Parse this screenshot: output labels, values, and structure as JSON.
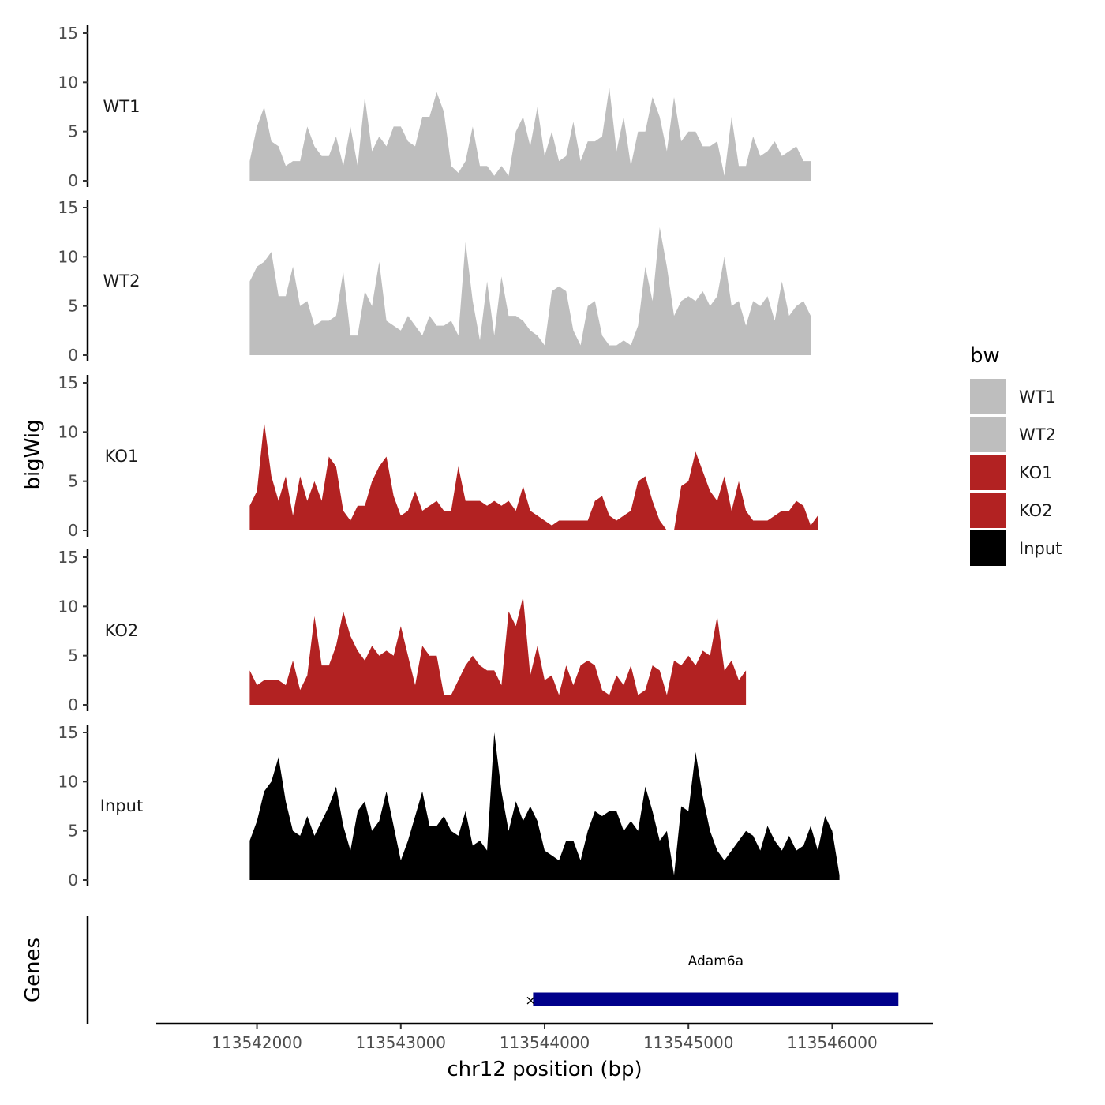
{
  "chart_data": {
    "type": "area",
    "title": "",
    "xlabel": "chr12 position (bp)",
    "ylabel": "bigWig",
    "genes_label": "Genes",
    "xlim": [
      113541300,
      113546700
    ],
    "ylim": [
      0,
      15
    ],
    "x_ticks": [
      113542000,
      113543000,
      113544000,
      113545000,
      113546000
    ],
    "x_tick_labels": [
      "113542000",
      "113543000",
      "113544000",
      "113545000",
      "113546000"
    ],
    "y_ticks": [
      0,
      5,
      10,
      15
    ],
    "y_tick_labels": [
      "0",
      "5",
      "10",
      "15"
    ],
    "grid": false,
    "x_start": 113541950,
    "x_step": 50,
    "series": [
      {
        "name": "WT1",
        "color": "#bebebe",
        "values": [
          2,
          5.5,
          7.5,
          4,
          3.5,
          1.5,
          2,
          2,
          5.5,
          3.5,
          2.5,
          2.5,
          4.5,
          1.5,
          5.5,
          1.5,
          8.5,
          3,
          4.5,
          3.5,
          5.5,
          5.5,
          4,
          3.5,
          6.5,
          6.5,
          9,
          7,
          1.5,
          0.8,
          2,
          5.5,
          1.5,
          1.5,
          0.5,
          1.5,
          0.5,
          5,
          6.5,
          3.5,
          7.5,
          2.5,
          5,
          2,
          2.5,
          6,
          2,
          4,
          4,
          4.5,
          9.5,
          3,
          6.5,
          1.5,
          5,
          5,
          8.5,
          6.5,
          3,
          8.5,
          4,
          5,
          5,
          3.5,
          3.5,
          4,
          0.5,
          6.5,
          1.5,
          1.5,
          4.5,
          2.5,
          3,
          4,
          2.5,
          3,
          3.5,
          2,
          2
        ]
      },
      {
        "name": "WT2",
        "color": "#bebebe",
        "values": [
          7.5,
          9,
          9.5,
          10.5,
          6,
          6,
          9,
          5,
          5.5,
          3,
          3.5,
          3.5,
          4,
          8.5,
          2,
          2,
          6.5,
          5,
          9.5,
          3.5,
          3,
          2.5,
          4,
          3,
          2,
          4,
          3,
          3,
          3.5,
          2,
          11.5,
          5.5,
          1.5,
          7.5,
          2,
          8,
          4,
          4,
          3.5,
          2.5,
          2,
          1,
          6.5,
          7,
          6.5,
          2.5,
          1,
          5,
          5.5,
          2,
          1,
          1,
          1.5,
          1,
          3,
          9,
          5.5,
          13,
          9,
          4,
          5.5,
          6,
          5.5,
          6.5,
          5,
          6,
          10,
          5,
          5.5,
          3,
          5.5,
          5,
          6,
          3.5,
          7.5,
          4,
          5,
          5.5,
          4
        ]
      },
      {
        "name": "KO1",
        "color": "#b22222",
        "values": [
          2.5,
          4,
          11,
          5.5,
          3,
          5.5,
          1.5,
          5.5,
          3,
          5,
          3,
          7.5,
          6.5,
          2,
          1,
          2.5,
          2.5,
          5,
          6.5,
          7.5,
          3.5,
          1.5,
          2,
          4,
          2,
          2.5,
          3,
          2,
          2,
          6.5,
          3,
          3,
          3,
          2.5,
          3,
          2.5,
          3,
          2,
          4.5,
          2,
          1.5,
          1,
          0.5,
          1,
          1,
          1,
          1,
          1,
          3,
          3.5,
          1.5,
          1,
          1.5,
          2,
          5,
          5.5,
          3,
          1,
          0,
          0,
          4.5,
          5,
          8,
          6,
          4,
          3,
          5.5,
          2,
          5,
          2,
          1,
          1,
          1,
          1.5,
          2,
          2,
          3,
          2.5,
          0.5,
          1.5
        ]
      },
      {
        "name": "KO2",
        "color": "#b22222",
        "values": [
          3.5,
          2,
          2.5,
          2.5,
          2.5,
          2,
          4.5,
          1.5,
          3,
          9,
          4,
          4,
          6,
          9.5,
          7,
          5.5,
          4.5,
          6,
          5,
          5.5,
          5,
          8,
          5,
          2,
          6,
          5,
          5,
          1,
          1,
          2.5,
          4,
          5,
          4,
          3.5,
          3.5,
          2,
          9.5,
          8,
          11,
          3,
          6,
          2.5,
          3,
          1,
          4,
          2,
          4,
          4.5,
          4,
          1.5,
          1,
          3,
          2,
          4,
          1,
          1.5,
          4,
          3.5,
          1,
          4.5,
          4,
          5,
          4,
          5.5,
          5,
          9,
          3.5,
          4.5,
          2.5,
          3.5
        ]
      },
      {
        "name": "Input",
        "color": "#000000",
        "values": [
          4,
          6,
          9,
          10,
          12.5,
          8,
          5,
          4.5,
          6.5,
          4.5,
          6,
          7.5,
          9.5,
          5.5,
          3,
          7,
          8,
          5,
          6,
          9,
          5.5,
          2,
          4,
          6.5,
          9,
          5.5,
          5.5,
          6.5,
          5,
          4.5,
          7,
          3.5,
          4,
          3,
          15,
          9,
          5,
          8,
          6,
          7.5,
          6,
          3,
          2.5,
          2,
          4,
          4,
          2,
          5,
          7,
          6.5,
          7,
          7,
          5,
          6,
          5,
          9.5,
          7,
          4,
          5,
          0.5,
          7.5,
          7,
          13,
          8.5,
          5,
          3,
          2,
          3,
          4,
          5,
          4.5,
          3,
          5.5,
          4,
          3,
          4.5,
          3,
          3.5,
          5.5,
          3,
          6.5,
          5,
          0.5
        ]
      }
    ],
    "gene": {
      "name": "Adam6a",
      "start": 113543920,
      "end": 113546460,
      "color": "#00008b"
    },
    "legend": {
      "title": "bw",
      "position": "right",
      "entries": [
        {
          "label": "WT1",
          "color": "#bebebe"
        },
        {
          "label": "WT2",
          "color": "#bebebe"
        },
        {
          "label": "KO1",
          "color": "#b22222"
        },
        {
          "label": "KO2",
          "color": "#b22222"
        },
        {
          "label": "Input",
          "color": "#000000"
        }
      ]
    }
  }
}
